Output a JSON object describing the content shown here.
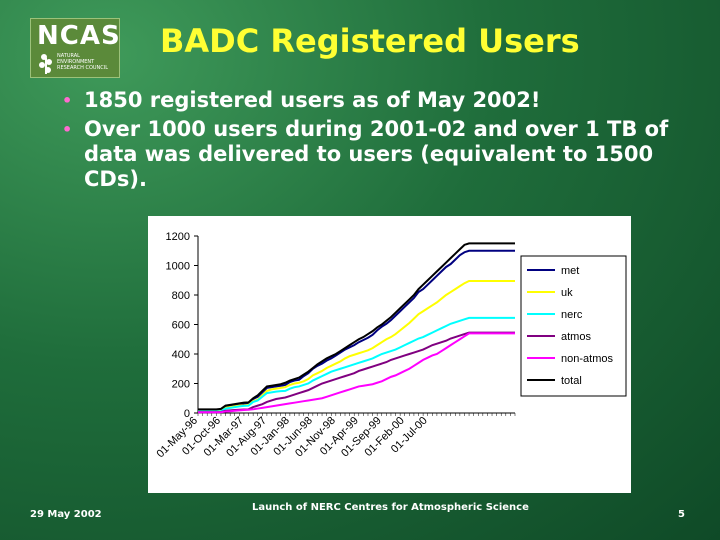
{
  "logo": {
    "text": "NCAS",
    "subtitle_lines": [
      "NATURAL",
      "ENVIRONMENT",
      "RESEARCH COUNCIL"
    ]
  },
  "slide": {
    "title": "BADC Registered Users",
    "bullets": [
      "1850 registered users as of May 2002!",
      "Over 1000 users during 2001-02 and over  1 TB of data was delivered to users (equivalent to 1500 CDs)."
    ]
  },
  "footer": {
    "date": "29 May 2002",
    "center": "Launch of NERC Centres for Atmospheric Science",
    "page": "5"
  },
  "colors": {
    "title": "#ffff33",
    "bullet": "#ff6bd0"
  },
  "chart_data": {
    "type": "line",
    "x_tick_labels": [
      "01-May-96",
      "01-Oct-96",
      "01-Mar-97",
      "01-Aug-97",
      "01-Jan-98",
      "01-Jun-98",
      "01-Nov-98",
      "01-Apr-99",
      "01-Sep-99",
      "01-Feb-00",
      "01-Jul-00"
    ],
    "x": [
      0,
      1,
      2,
      3,
      4,
      5,
      6,
      7,
      8,
      9,
      10,
      11,
      12,
      13,
      14,
      15,
      16,
      17,
      18,
      19,
      20,
      21,
      22,
      23,
      24,
      25,
      26,
      27,
      28,
      29,
      30,
      31,
      32,
      33,
      34,
      35,
      36,
      37,
      38,
      39,
      40,
      41,
      42,
      43,
      44,
      45,
      46,
      47,
      48,
      49,
      50,
      51,
      52,
      53,
      54,
      55,
      56,
      57,
      58,
      59,
      60,
      61,
      62,
      63,
      64,
      65,
      66,
      67,
      68,
      69
    ],
    "ylim": [
      0,
      1200
    ],
    "yticks": [
      0,
      200,
      400,
      600,
      800,
      1000,
      1200
    ],
    "grid": false,
    "legend_position": "right",
    "series": [
      {
        "name": "met",
        "color": "#000080",
        "values": [
          20,
          20,
          20,
          20,
          20,
          22,
          45,
          50,
          55,
          60,
          62,
          65,
          95,
          110,
          140,
          170,
          175,
          180,
          185,
          190,
          210,
          220,
          225,
          250,
          270,
          300,
          320,
          335,
          355,
          370,
          390,
          410,
          430,
          445,
          460,
          480,
          495,
          510,
          530,
          560,
          585,
          605,
          630,
          660,
          690,
          720,
          750,
          780,
          820,
          840,
          870,
          900,
          930,
          960,
          990,
          1010,
          1040,
          1070,
          1090,
          1100,
          1100,
          1100,
          1100,
          1100,
          1100,
          1100,
          1100,
          1100,
          1100,
          1100
        ]
      },
      {
        "name": "uk",
        "color": "#ffff00",
        "values": [
          15,
          15,
          15,
          15,
          15,
          17,
          35,
          40,
          45,
          50,
          52,
          55,
          80,
          90,
          120,
          150,
          160,
          165,
          170,
          175,
          190,
          200,
          205,
          215,
          230,
          255,
          270,
          285,
          305,
          320,
          335,
          350,
          370,
          385,
          395,
          405,
          415,
          425,
          440,
          460,
          480,
          500,
          515,
          535,
          560,
          585,
          610,
          640,
          670,
          690,
          710,
          730,
          750,
          775,
          800,
          820,
          840,
          860,
          880,
          895,
          895,
          895,
          895,
          895,
          895,
          895,
          895,
          895,
          895,
          895
        ]
      },
      {
        "name": "nerc",
        "color": "#00ffff",
        "values": [
          10,
          10,
          10,
          10,
          10,
          12,
          30,
          35,
          40,
          45,
          48,
          50,
          75,
          85,
          110,
          135,
          140,
          145,
          148,
          150,
          165,
          175,
          180,
          190,
          200,
          220,
          235,
          250,
          265,
          280,
          290,
          300,
          310,
          320,
          330,
          340,
          350,
          360,
          370,
          385,
          400,
          410,
          420,
          430,
          445,
          460,
          475,
          490,
          505,
          515,
          530,
          545,
          560,
          575,
          590,
          605,
          615,
          625,
          635,
          645,
          645,
          645,
          645,
          645,
          645,
          645,
          645,
          645,
          645,
          645
        ]
      },
      {
        "name": "atmos",
        "color": "#800080",
        "values": [
          5,
          5,
          5,
          5,
          5,
          7,
          15,
          18,
          20,
          22,
          24,
          25,
          40,
          50,
          60,
          75,
          85,
          95,
          100,
          105,
          115,
          125,
          135,
          145,
          155,
          170,
          185,
          200,
          210,
          220,
          230,
          240,
          250,
          260,
          270,
          285,
          295,
          305,
          315,
          325,
          335,
          345,
          360,
          370,
          380,
          390,
          400,
          410,
          420,
          430,
          445,
          460,
          470,
          480,
          490,
          505,
          515,
          525,
          535,
          545,
          545,
          545,
          545,
          545,
          545,
          545,
          545,
          545,
          545,
          545
        ]
      },
      {
        "name": "non-atmos",
        "color": "#ff00ff",
        "values": [
          5,
          5,
          5,
          5,
          5,
          5,
          10,
          12,
          15,
          18,
          20,
          22,
          25,
          30,
          35,
          40,
          45,
          50,
          55,
          60,
          65,
          70,
          75,
          80,
          85,
          90,
          95,
          100,
          110,
          120,
          130,
          140,
          150,
          160,
          170,
          180,
          185,
          190,
          195,
          205,
          215,
          230,
          245,
          255,
          270,
          285,
          300,
          320,
          340,
          360,
          375,
          390,
          400,
          420,
          440,
          460,
          480,
          500,
          520,
          540,
          540,
          540,
          540,
          540,
          540,
          540,
          540,
          540,
          540,
          540
        ]
      },
      {
        "name": "total",
        "color": "#000000",
        "values": [
          25,
          25,
          25,
          25,
          25,
          28,
          50,
          55,
          60,
          65,
          70,
          72,
          100,
          120,
          150,
          180,
          185,
          190,
          195,
          205,
          220,
          230,
          240,
          260,
          280,
          305,
          330,
          350,
          370,
          385,
          400,
          420,
          440,
          460,
          480,
          500,
          515,
          535,
          555,
          580,
          600,
          625,
          650,
          680,
          710,
          740,
          770,
          800,
          840,
          870,
          900,
          930,
          960,
          990,
          1020,
          1050,
          1080,
          1110,
          1140,
          1150,
          1150,
          1150,
          1150,
          1150,
          1150,
          1150,
          1150,
          1150,
          1150,
          1150
        ]
      }
    ]
  }
}
